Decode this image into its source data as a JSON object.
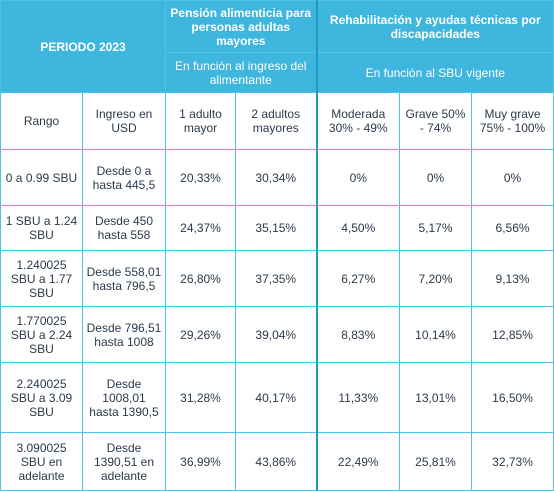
{
  "header": {
    "period": "PERIODO 2023",
    "pension_title": "Pensión alimenticia para personas adultas mayores",
    "pension_sub": "En función al ingreso del alimentante",
    "rehab_title": "Rehabilitación y ayudas técnicas por discapacidades",
    "rehab_sub": "En función al SBU vigente"
  },
  "columns": {
    "rango": "Rango",
    "ingreso": "Ingreso en USD",
    "adulto1": "1 adulto mayor",
    "adulto2": "2 adultos mayores",
    "moderada": "Moderada 30% - 49%",
    "grave": "Grave 50% - 74%",
    "muy_grave": "Muy grave 75% - 100%"
  },
  "rows": [
    {
      "rango": "0 a 0.99 SBU",
      "ingreso": "Desde 0 a hasta 445,5",
      "adulto1": "20,33%",
      "adulto2": "30,34%",
      "moderada": "0%",
      "grave": "0%",
      "muy_grave": "0%"
    },
    {
      "rango": "1 SBU a 1.24 SBU",
      "ingreso": "Desde 450 hasta 558",
      "adulto1": "24,37%",
      "adulto2": "35,15%",
      "moderada": "4,50%",
      "grave": "5,17%",
      "muy_grave": "6,56%"
    },
    {
      "rango": "1.240025 SBU a 1.77 SBU",
      "ingreso": "Desde 558,01 hasta 796,5",
      "adulto1": "26,80%",
      "adulto2": "37,35%",
      "moderada": "6,27%",
      "grave": "7,20%",
      "muy_grave": "9,13%"
    },
    {
      "rango": "1.770025 SBU a 2.24 SBU",
      "ingreso": "Desde 796,51 hasta 1008",
      "adulto1": "29,26%",
      "adulto2": "39,04%",
      "moderada": "8,83%",
      "grave": "10,14%",
      "muy_grave": "12,85%"
    },
    {
      "rango": "2.240025 SBU a 3.09 SBU",
      "ingreso": "Desde 1008,01 hasta 1390,5",
      "adulto1": "31,28%",
      "adulto2": "40,17%",
      "moderada": "11,33%",
      "grave": "13,01%",
      "muy_grave": "16,50%"
    },
    {
      "rango": "3.090025 SBU en adelante",
      "ingreso": "Desde 1390,51 en adelante",
      "adulto1": "36,99%",
      "adulto2": "43,86%",
      "moderada": "22,49%",
      "grave": "25,81%",
      "muy_grave": "32,73%"
    }
  ],
  "colors": {
    "header_bg": "#3fb6de",
    "border": "#4dc3e5",
    "text": "#2b3a4a"
  }
}
